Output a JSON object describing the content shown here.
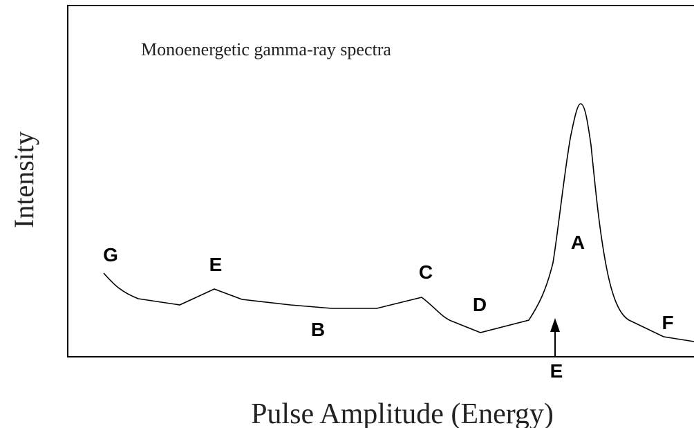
{
  "title": "Monoenergetic gamma-ray spectra",
  "axes": {
    "y_label": "Intensity",
    "x_label": "Pulse Amplitude (Energy)"
  },
  "labels": [
    "G",
    "E",
    "C",
    "D",
    "B",
    "A",
    "F"
  ],
  "marker": "E"
}
